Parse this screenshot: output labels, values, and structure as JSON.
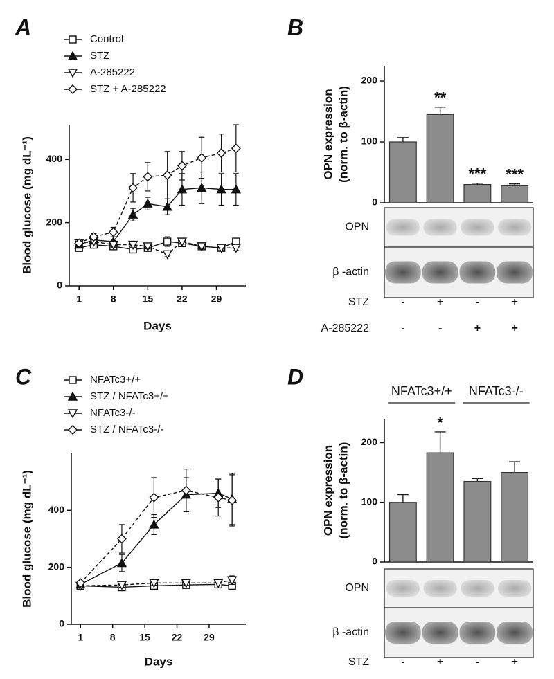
{
  "chart_data": [
    {
      "type": "line",
      "panel": "A",
      "xlabel": "Days",
      "ylabel": "Blood glucose (mg dL⁻¹)",
      "x": [
        1,
        4,
        8,
        12,
        15,
        19,
        22,
        26,
        30,
        33
      ],
      "xlim": [
        -1,
        35
      ],
      "xticks": [
        1,
        8,
        15,
        22,
        29
      ],
      "ylim": [
        0,
        510
      ],
      "yticks": [
        0,
        200,
        400
      ],
      "series": [
        {
          "name": "Control",
          "color": "#111111",
          "marker": "square",
          "dash": false,
          "values": [
            120,
            130,
            125,
            115,
            120,
            140,
            135,
            125,
            120,
            140
          ],
          "errors": [
            8,
            8,
            8,
            8,
            8,
            15,
            8,
            8,
            5,
            8
          ]
        },
        {
          "name": "STZ",
          "color": "#111111",
          "marker": "triangle-up-filled",
          "dash": false,
          "values": [
            130,
            145,
            140,
            225,
            260,
            250,
            305,
            310,
            305,
            305
          ],
          "errors": [
            10,
            10,
            15,
            20,
            20,
            25,
            50,
            50,
            50,
            50
          ]
        },
        {
          "name": "A-285222",
          "color": "#111111",
          "marker": "triangle-down",
          "dash": true,
          "values": [
            135,
            140,
            130,
            130,
            125,
            100,
            140,
            125,
            120,
            120
          ],
          "errors": [
            8,
            8,
            8,
            8,
            8,
            8,
            8,
            8,
            8,
            8
          ]
        },
        {
          "name": "STZ + A-285222",
          "color": "#111111",
          "marker": "diamond",
          "dash": true,
          "values": [
            135,
            155,
            170,
            310,
            345,
            350,
            380,
            405,
            420,
            435
          ],
          "errors": [
            10,
            10,
            15,
            45,
            45,
            75,
            45,
            65,
            60,
            75
          ]
        }
      ]
    },
    {
      "type": "bar",
      "panel": "B",
      "ylabel": [
        "OPN expression",
        "(norm. to β-actin)"
      ],
      "values": [
        100,
        145,
        30,
        28
      ],
      "errors": [
        7,
        12,
        2,
        3
      ],
      "annotations": [
        "**",
        "***",
        "***"
      ],
      "annotation_index": [
        1,
        2,
        3
      ],
      "color": "#8c8c8c",
      "ylim": [
        0,
        225
      ],
      "yticks": [
        0,
        100,
        200
      ],
      "blot_labels": [
        "OPN",
        "β -actin"
      ],
      "rows": [
        {
          "label": "STZ",
          "values": [
            "-",
            "+",
            "-",
            "+"
          ]
        },
        {
          "label": "A-285222",
          "values": [
            "-",
            "-",
            "+",
            "+"
          ]
        }
      ]
    },
    {
      "type": "line",
      "panel": "C",
      "xlabel": "Days",
      "ylabel": "Blood glucose (mg dL⁻¹)",
      "x": [
        1,
        10,
        17,
        24,
        31,
        34
      ],
      "xlim": [
        -1,
        37
      ],
      "xticks": [
        1,
        8,
        15,
        22,
        29
      ],
      "ylim": [
        0,
        600
      ],
      "yticks": [
        0,
        200,
        400
      ],
      "series": [
        {
          "name": "NFATc3+/+",
          "color": "#111111",
          "marker": "square",
          "dash": false,
          "values": [
            135,
            130,
            135,
            138,
            140,
            135
          ],
          "errors": [
            5,
            5,
            8,
            8,
            8,
            10
          ]
        },
        {
          "name": "STZ / NFATc3+/+",
          "color": "#111111",
          "marker": "triangle-up-filled",
          "dash": false,
          "values": [
            140,
            215,
            350,
            455,
            460,
            440
          ],
          "errors": [
            8,
            30,
            35,
            60,
            50,
            90
          ]
        },
        {
          "name": "NFATc3-/-",
          "color": "#111111",
          "marker": "triangle-down",
          "dash": true,
          "values": [
            135,
            138,
            145,
            145,
            145,
            155
          ],
          "errors": [
            5,
            8,
            8,
            8,
            10,
            15
          ]
        },
        {
          "name": "STZ / NFATc3-/-",
          "color": "#111111",
          "marker": "diamond",
          "dash": true,
          "values": [
            145,
            300,
            445,
            470,
            445,
            435
          ],
          "errors": [
            8,
            50,
            70,
            75,
            65,
            90
          ]
        }
      ]
    },
    {
      "type": "bar",
      "panel": "D",
      "ylabel": [
        "OPN expression",
        "(norm. to β-actin)"
      ],
      "values": [
        100,
        183,
        135,
        150
      ],
      "errors": [
        13,
        35,
        5,
        18
      ],
      "annotations": [
        "*"
      ],
      "annotation_index": [
        1
      ],
      "color": "#8c8c8c",
      "ylim": [
        0,
        240
      ],
      "yticks": [
        0,
        100,
        200
      ],
      "groups": [
        "NFATc3+/+",
        "NFATc3-/-"
      ],
      "blot_labels": [
        "OPN",
        "β -actin"
      ],
      "rows": [
        {
          "label": "STZ",
          "values": [
            "-",
            "+",
            "-",
            "+"
          ]
        }
      ]
    }
  ]
}
